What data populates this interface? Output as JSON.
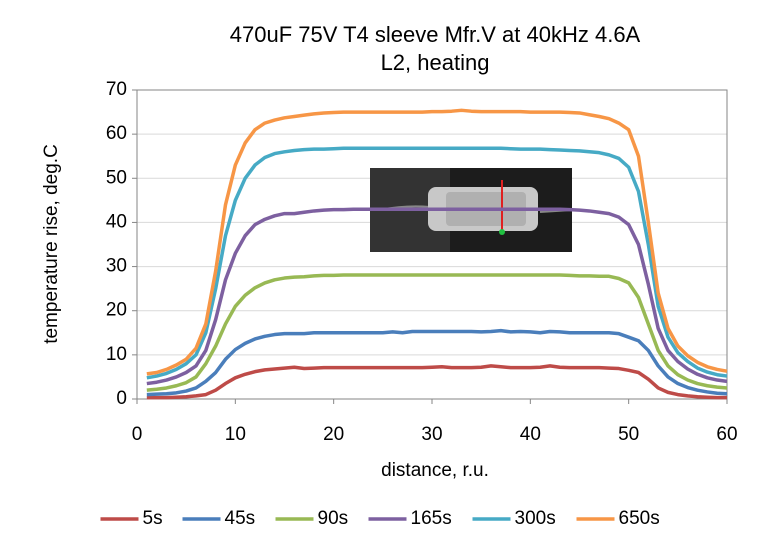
{
  "chart_data": {
    "type": "line",
    "title": [
      "470uF 75V T4 sleeve Mfr.V at 40kHz 4.6A",
      "L2, heating"
    ],
    "x_label": "distance, r.u.",
    "y_label": "temperature rise, deg.C",
    "x": [
      1,
      2,
      3,
      4,
      5,
      6,
      7,
      8,
      9,
      10,
      11,
      12,
      13,
      14,
      15,
      16,
      17,
      18,
      19,
      20,
      21,
      22,
      23,
      24,
      25,
      26,
      27,
      28,
      29,
      30,
      31,
      32,
      33,
      34,
      35,
      36,
      37,
      38,
      39,
      40,
      41,
      42,
      43,
      44,
      45,
      46,
      47,
      48,
      49,
      50,
      51,
      52,
      53,
      54,
      55,
      56,
      57,
      58,
      59,
      60
    ],
    "series": [
      {
        "name": "5s",
        "color": "#be4b48",
        "values": [
          0.3,
          0.3,
          0.3,
          0.4,
          0.5,
          0.7,
          1,
          2,
          3.5,
          4.8,
          5.6,
          6.2,
          6.6,
          6.8,
          7,
          7.2,
          6.9,
          7,
          7.1,
          7.1,
          7.1,
          7.1,
          7.1,
          7.1,
          7.1,
          7.1,
          7.1,
          7.1,
          7.1,
          7.2,
          7.3,
          7.1,
          7.1,
          7.1,
          7.2,
          7.5,
          7.3,
          7.1,
          7.1,
          7.1,
          7.2,
          7.5,
          7.2,
          7.1,
          7.1,
          7.1,
          7.1,
          7,
          6.9,
          6.5,
          6,
          4.5,
          2.5,
          1.5,
          1,
          0.7,
          0.5,
          0.4,
          0.3,
          0.3
        ]
      },
      {
        "name": "45s",
        "color": "#4a7ebb",
        "values": [
          1,
          1.1,
          1.2,
          1.4,
          1.8,
          2.5,
          4,
          6,
          9,
          11.2,
          12.6,
          13.6,
          14.2,
          14.6,
          14.8,
          14.8,
          14.8,
          15,
          15,
          15,
          15,
          15,
          15,
          15,
          15,
          15.2,
          15,
          15.3,
          15.3,
          15.3,
          15.3,
          15.3,
          15.3,
          15.3,
          15.2,
          15.3,
          15.5,
          15.2,
          15.3,
          15.2,
          15,
          15.3,
          15.2,
          15,
          15,
          15,
          15,
          15,
          14.8,
          14,
          13.2,
          11,
          7.5,
          5,
          3.5,
          2.6,
          2,
          1.6,
          1.3,
          1.2
        ]
      },
      {
        "name": "90s",
        "color": "#98b954",
        "values": [
          2,
          2.2,
          2.5,
          3,
          3.7,
          5,
          8,
          12,
          17,
          21,
          23.5,
          25.2,
          26.3,
          27,
          27.4,
          27.6,
          27.7,
          27.9,
          28,
          28,
          28.1,
          28.1,
          28.1,
          28.1,
          28.1,
          28.1,
          28.1,
          28.1,
          28.1,
          28.1,
          28.1,
          28.1,
          28.1,
          28.1,
          28.1,
          28.1,
          28.1,
          28.1,
          28.1,
          28.1,
          28.1,
          28.1,
          28.1,
          28,
          27.9,
          27.9,
          27.8,
          27.8,
          27.3,
          26.3,
          23,
          17,
          11,
          7.5,
          5.5,
          4.3,
          3.5,
          3,
          2.7,
          2.5
        ]
      },
      {
        "name": "165s",
        "color": "#7d60a0",
        "values": [
          3.5,
          3.8,
          4.3,
          5,
          6,
          7.5,
          11,
          18,
          27,
          33,
          37,
          39.5,
          40.7,
          41.5,
          42,
          42,
          42.3,
          42.6,
          42.8,
          42.9,
          42.9,
          43,
          43,
          43,
          43,
          43,
          43,
          43,
          43,
          43,
          43,
          43,
          43,
          43,
          43,
          43,
          43,
          43,
          43,
          43,
          43,
          43,
          43,
          42.9,
          42.8,
          42.6,
          42.3,
          42,
          41.2,
          39.5,
          35,
          26,
          16,
          11,
          8.5,
          6.8,
          5.6,
          4.8,
          4.3,
          4
        ]
      },
      {
        "name": "300s",
        "color": "#46aac5",
        "values": [
          4.8,
          5.2,
          5.8,
          6.7,
          8,
          10,
          15,
          25,
          37,
          45,
          50,
          53,
          54.7,
          55.6,
          56,
          56.3,
          56.5,
          56.6,
          56.6,
          56.7,
          56.8,
          56.8,
          56.8,
          56.8,
          56.8,
          56.8,
          56.8,
          56.8,
          56.8,
          56.8,
          56.8,
          56.8,
          56.8,
          56.8,
          56.8,
          56.8,
          56.8,
          56.7,
          56.6,
          56.6,
          56.6,
          56.5,
          56.4,
          56.3,
          56.2,
          56,
          55.8,
          55.3,
          54.5,
          52.5,
          47,
          35,
          21,
          14,
          10.5,
          8.5,
          7,
          6.1,
          5.5,
          5.2
        ]
      },
      {
        "name": "650s",
        "color": "#f79646",
        "values": [
          5.7,
          6,
          6.7,
          7.7,
          9,
          11.5,
          17,
          29,
          44,
          53,
          58,
          61,
          62.5,
          63.2,
          63.7,
          64,
          64.3,
          64.6,
          64.8,
          64.9,
          65,
          65,
          65,
          65,
          65,
          65,
          65,
          65,
          65,
          65.1,
          65.1,
          65.2,
          65.4,
          65.2,
          65.1,
          65.1,
          65.1,
          65.1,
          65.1,
          65,
          65,
          65,
          65,
          64.9,
          64.8,
          64.4,
          64,
          63.5,
          62.5,
          61,
          55,
          40,
          24,
          16,
          12,
          9.8,
          8.3,
          7.3,
          6.7,
          6.3
        ]
      }
    ],
    "xlim": [
      0,
      60
    ],
    "xticks": [
      0,
      10,
      20,
      30,
      40,
      50,
      60
    ],
    "ylim": [
      0,
      70
    ],
    "yticks": [
      0,
      10,
      20,
      30,
      40,
      50,
      60,
      70
    ],
    "grid": true,
    "legend": "bottom"
  }
}
